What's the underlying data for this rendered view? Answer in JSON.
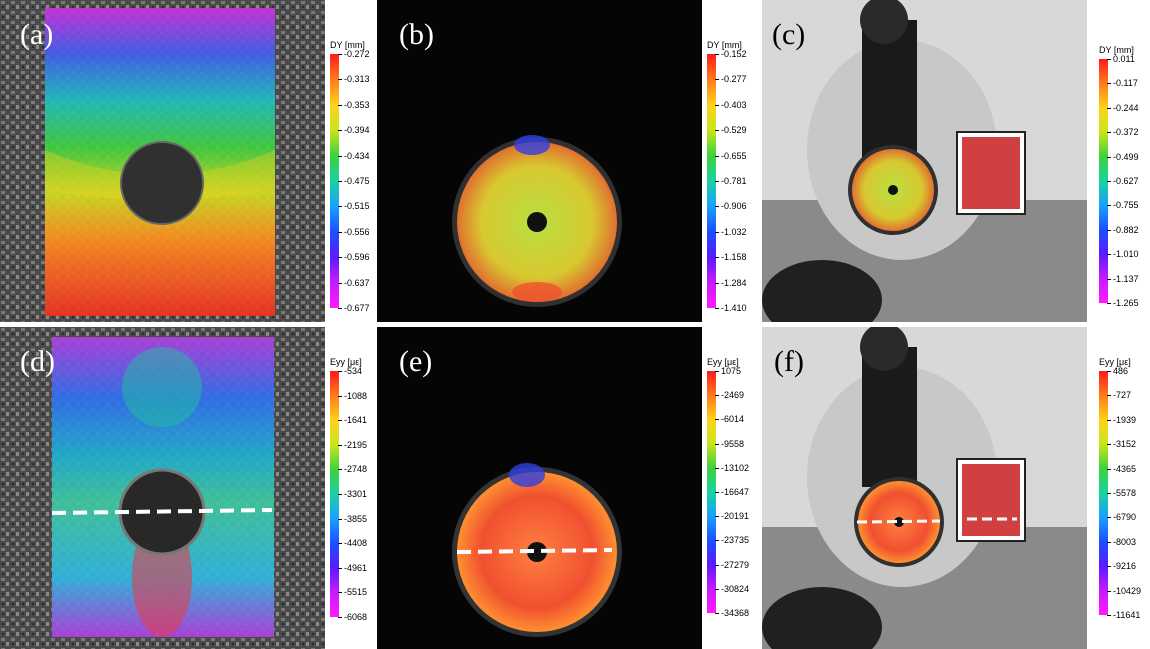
{
  "panels": [
    {
      "id": "a",
      "label": "(a)",
      "cbar": {
        "title": "DY [mm]",
        "ticks": [
          "-0.272",
          "-0.313",
          "-0.353",
          "-0.394",
          "-0.434",
          "-0.475",
          "-0.515",
          "-0.556",
          "-0.596",
          "-0.637",
          "-0.677"
        ]
      }
    },
    {
      "id": "b",
      "label": "(b)",
      "cbar": {
        "title": "DY [mm]",
        "ticks": [
          "-0.152",
          "-0.277",
          "-0.403",
          "-0.529",
          "-0.655",
          "-0.781",
          "-0.906",
          "-1.032",
          "-1.158",
          "-1.284",
          "-1.410"
        ]
      }
    },
    {
      "id": "c",
      "label": "(c)",
      "cbar": {
        "title": "DY [mm]",
        "ticks": [
          "0.011",
          "-0.117",
          "-0.244",
          "-0.372",
          "-0.499",
          "-0.627",
          "-0.755",
          "-0.882",
          "-1.010",
          "-1.137",
          "-1.265"
        ]
      }
    },
    {
      "id": "d",
      "label": "(d)",
      "cbar": {
        "title": "Eyy [με]",
        "ticks": [
          "-534",
          "-1088",
          "-1641",
          "-2195",
          "-2748",
          "-3301",
          "-3855",
          "-4408",
          "-4961",
          "-5515",
          "-6068"
        ]
      }
    },
    {
      "id": "e",
      "label": "(e)",
      "cbar": {
        "title": "Eyy [με]",
        "ticks": [
          "1075",
          "-2469",
          "-6014",
          "-9558",
          "-13102",
          "-16647",
          "-20191",
          "-23735",
          "-27279",
          "-30824",
          "-34368"
        ]
      }
    },
    {
      "id": "f",
      "label": "(f)",
      "cbar": {
        "title": "Eyy [με]",
        "ticks": [
          "486",
          "-727",
          "-1939",
          "-3152",
          "-4365",
          "-5578",
          "-6790",
          "-8003",
          "-9216",
          "-10429",
          "-11641"
        ]
      }
    }
  ],
  "colors": {
    "rainbow": [
      "#ff1a1a",
      "#ff7a1a",
      "#ffd21a",
      "#c8e61a",
      "#3cd23c",
      "#1ad2a0",
      "#1aa0ff",
      "#1a50ff",
      "#5a1aff",
      "#c81aff",
      "#ff1aff"
    ]
  }
}
